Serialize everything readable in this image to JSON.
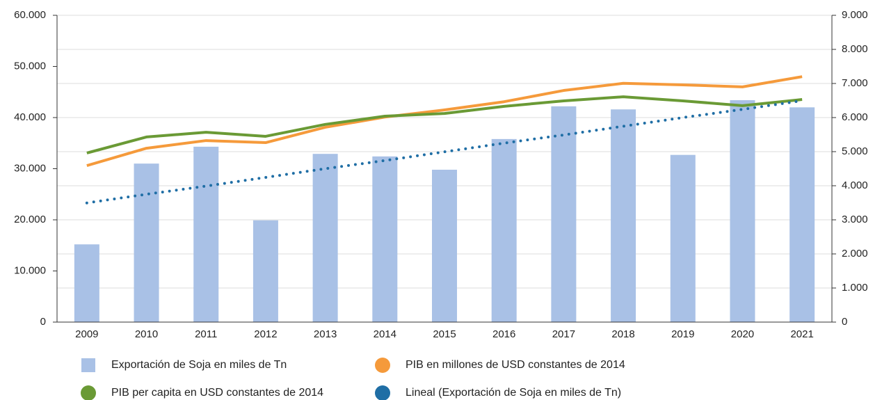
{
  "chart_data": {
    "type": "bar",
    "categories": [
      "2009",
      "2010",
      "2011",
      "2012",
      "2013",
      "2014",
      "2015",
      "2016",
      "2017",
      "2018",
      "2019",
      "2020",
      "2021"
    ],
    "series": [
      {
        "name": "Exportación de Soja en miles de Tn",
        "type": "bar",
        "color": "#a9c1e6",
        "values": [
          15200,
          31000,
          34300,
          19900,
          32900,
          32400,
          29800,
          35800,
          42200,
          41600,
          32700,
          43400,
          42000
        ]
      },
      {
        "name": "PIB en millones de USD constantes de 2014",
        "type": "line",
        "color": "#f59a3b",
        "values": [
          30600,
          34000,
          35500,
          35100,
          38100,
          40100,
          41500,
          43100,
          45300,
          46700,
          46400,
          46000,
          48000
        ]
      },
      {
        "name": "PIB per capita en USD constantes de 2014",
        "type": "line",
        "color": "#6a9a35",
        "axis": "y2",
        "values": [
          4960,
          5430,
          5570,
          5450,
          5800,
          6040,
          6120,
          6330,
          6490,
          6610,
          6490,
          6350,
          6530
        ]
      },
      {
        "name": "Lineal (Exportación de Soja en miles de Tn)",
        "type": "line",
        "style": "dotted",
        "color": "#1f6ea5",
        "values": [
          23300,
          25000,
          26600,
          28300,
          30000,
          31600,
          33300,
          35000,
          36600,
          38300,
          40000,
          41600,
          43300
        ]
      }
    ],
    "ylim": [
      0,
      60000
    ],
    "yticks": [
      0,
      {
        "value": 10000,
        "label": "10.000"
      },
      {
        "value": 20000,
        "label": "20.000"
      },
      {
        "value": 30000,
        "label": "30.000"
      },
      {
        "value": 40000,
        "label": "40.000"
      },
      {
        "value": 50000,
        "label": "50.000"
      },
      {
        "value": 60000,
        "label": "60.000"
      }
    ],
    "y2lim": [
      0,
      9000
    ],
    "y2ticks": [
      0,
      {
        "value": 1000,
        "label": "1.000"
      },
      {
        "value": 2000,
        "label": "2.000"
      },
      {
        "value": 3000,
        "label": "3.000"
      },
      {
        "value": 4000,
        "label": "4.000"
      },
      {
        "value": 5000,
        "label": "5.000"
      },
      {
        "value": 6000,
        "label": "6.000"
      },
      {
        "value": 7000,
        "label": "7.000"
      },
      {
        "value": 8000,
        "label": "8.000"
      },
      {
        "value": 9000,
        "label": "9.000"
      }
    ],
    "grid": true,
    "legend": "bottom"
  }
}
